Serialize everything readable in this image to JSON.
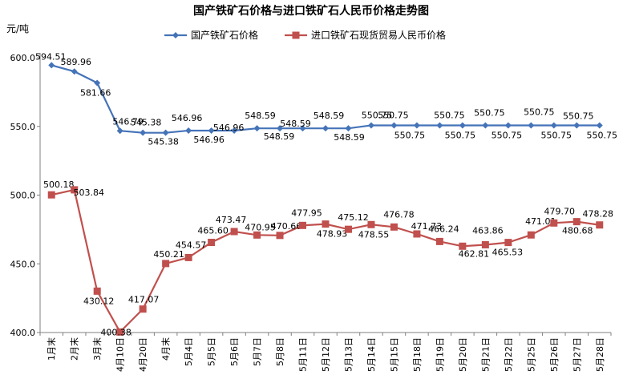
{
  "chart_data": {
    "type": "line",
    "title": "国产铁矿石价格与进口铁矿石人民币价格走势图",
    "ylabel": "元/吨",
    "xlabel": "",
    "ylim": [
      400,
      600
    ],
    "yticks": [
      "400.0",
      "450.0",
      "500.0",
      "550.0",
      "600.0"
    ],
    "grid": false,
    "legend_position": "top",
    "categories": [
      "1月末",
      "2月末",
      "3月末",
      "4月10日",
      "4月20日",
      "4月末",
      "5月4日",
      "5月5日",
      "5月6日",
      "5月7日",
      "5月8日",
      "5月11日",
      "5月12日",
      "5月13日",
      "5月14日",
      "5月15日",
      "5月18日",
      "5月19日",
      "5月20日",
      "5月21日",
      "5月22日",
      "5月25日",
      "5月26日",
      "5月27日",
      "5月28日"
    ],
    "series": [
      {
        "name": "国产铁矿石价格",
        "color": "#4573b8",
        "marker": "diamond",
        "values": [
          594.51,
          589.96,
          581.66,
          546.79,
          545.38,
          545.38,
          546.96,
          546.96,
          546.96,
          548.59,
          548.59,
          548.59,
          548.59,
          548.59,
          550.75,
          550.75,
          550.75,
          550.75,
          550.75,
          550.75,
          550.75,
          550.75,
          550.75,
          550.75,
          550.75
        ],
        "labels": [
          "594.51",
          "589.96",
          "581.66",
          "546.79",
          "545.38",
          "545.38",
          "546.96",
          "546.96",
          "546.96",
          "548.59",
          "548.59",
          "548.59",
          "548.59",
          "548.59",
          "550.75",
          "550.75",
          "550.75",
          "550.75",
          "550.75",
          "550.75",
          "550.75",
          "550.75",
          "550.75",
          "550.75",
          "550.75"
        ]
      },
      {
        "name": "进口铁矿石现货贸易人民币价格",
        "color": "#c0504d",
        "marker": "square",
        "values": [
          500.18,
          503.84,
          430.12,
          400.38,
          417.07,
          450.21,
          454.57,
          465.6,
          473.47,
          470.95,
          470.66,
          477.95,
          478.93,
          475.12,
          478.55,
          476.78,
          471.73,
          466.24,
          462.81,
          463.86,
          465.53,
          471.01,
          479.7,
          480.68,
          478.28
        ],
        "labels": [
          "500.18",
          "503.84",
          "430.12",
          "400.38",
          "417.07",
          "450.21",
          "454.57",
          "465.60",
          "473.47",
          "470.95",
          "470.66",
          "477.95",
          "478.93",
          "475.12",
          "478.55",
          "476.78",
          "471.73",
          "466.24",
          "462.81",
          "463.86",
          "465.53",
          "471.01",
          "479.70",
          "480.68",
          "478.28"
        ]
      }
    ]
  }
}
